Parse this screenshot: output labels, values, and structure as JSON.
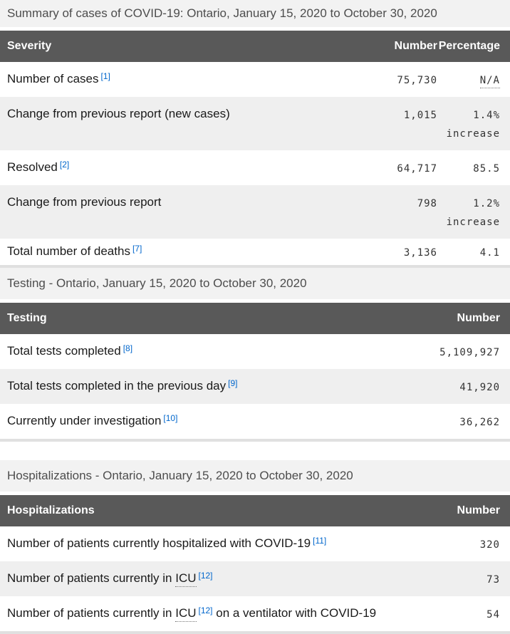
{
  "colors": {
    "header_bg": "#595959",
    "header_text": "#ffffff",
    "caption_bg": "#f2f2f2",
    "caption_text": "#4d4d4d",
    "row_alt_bg": "#efefef",
    "label_text": "#1a1a1a",
    "number_text": "#333333",
    "link": "#0066cc",
    "table_border": "#e0e0e0"
  },
  "summary": {
    "caption": "Summary of cases of COVID-19: Ontario, January 15, 2020 to October 30, 2020",
    "columns": {
      "severity": "Severity",
      "number": "Number",
      "percentage": "Percentage"
    },
    "rows": [
      {
        "prefix": "Number of cases",
        "abbr": "",
        "sup": "[1]",
        "suffix": "",
        "number": "75,730",
        "pct_abbr": "N/A",
        "pct_value": "",
        "pct_note": ""
      },
      {
        "prefix": "Change from previous report (new cases)",
        "abbr": "",
        "sup": "",
        "suffix": "",
        "number": "1,015",
        "pct_abbr": "",
        "pct_value": "1.4%",
        "pct_note": "increase"
      },
      {
        "prefix": "Resolved",
        "abbr": "",
        "sup": "[2]",
        "suffix": "",
        "number": "64,717",
        "pct_abbr": "",
        "pct_value": "85.5",
        "pct_note": ""
      },
      {
        "prefix": "Change from previous report",
        "abbr": "",
        "sup": "",
        "suffix": "",
        "number": "798",
        "pct_abbr": "",
        "pct_value": "1.2%",
        "pct_note": "increase"
      },
      {
        "prefix": "Total number of deaths",
        "abbr": "",
        "sup": "[7]",
        "suffix": "",
        "number": "3,136",
        "pct_abbr": "",
        "pct_value": "4.1",
        "pct_note": ""
      }
    ]
  },
  "testing": {
    "caption": "Testing - Ontario, January 15, 2020 to October 30, 2020",
    "columns": {
      "label": "Testing",
      "number": "Number"
    },
    "rows": [
      {
        "prefix": "Total tests completed",
        "abbr": "",
        "sup": "[8]",
        "suffix": "",
        "number": "5,109,927"
      },
      {
        "prefix": "Total tests completed in the previous day",
        "abbr": "",
        "sup": "[9]",
        "suffix": "",
        "number": "41,920"
      },
      {
        "prefix": "Currently under investigation",
        "abbr": "",
        "sup": "[10]",
        "suffix": "",
        "number": "36,262"
      }
    ]
  },
  "hospitalizations": {
    "caption": "Hospitalizations - Ontario, January 15, 2020 to October 30, 2020",
    "columns": {
      "label": "Hospitalizations",
      "number": "Number"
    },
    "rows": [
      {
        "prefix": "Number of patients currently hospitalized with COVID-19",
        "abbr": "",
        "sup": "[11]",
        "suffix": "",
        "number": "320"
      },
      {
        "prefix": "Number of patients currently in ",
        "abbr": "ICU",
        "sup": "[12]",
        "suffix": "",
        "number": "73"
      },
      {
        "prefix": "Number of patients currently in ",
        "abbr": "ICU",
        "sup": "[12]",
        "suffix": " on a ventilator with COVID-19",
        "number": "54"
      }
    ]
  }
}
